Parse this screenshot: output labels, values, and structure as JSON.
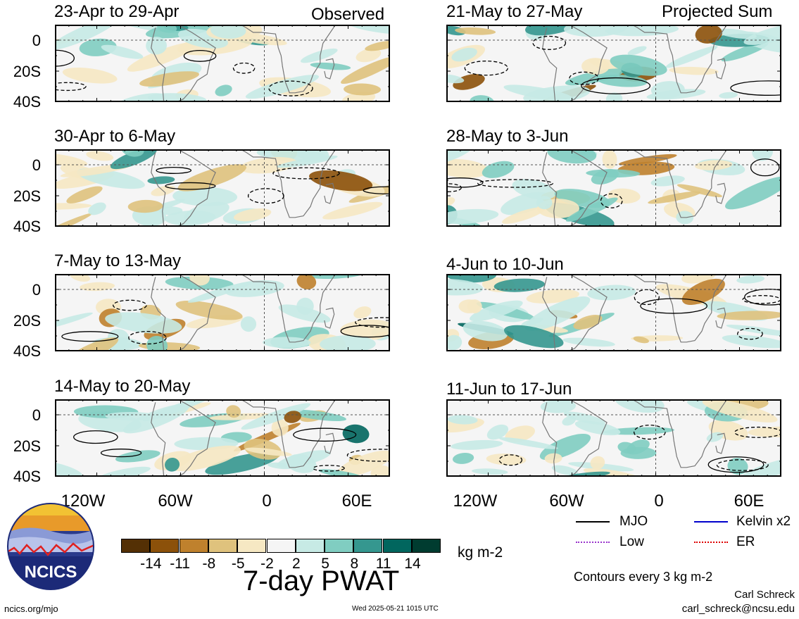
{
  "columns": [
    {
      "tag": "Observed",
      "panels": [
        {
          "title": "23-Apr to 29-Apr"
        },
        {
          "title": "30-Apr to 6-May"
        },
        {
          "title": "7-May to 13-May"
        },
        {
          "title": "14-May to 20-May"
        }
      ]
    },
    {
      "tag": "Projected Sum",
      "panels": [
        {
          "title": "21-May to 27-May"
        },
        {
          "title": "28-May to 3-Jun"
        },
        {
          "title": "4-Jun to 10-Jun"
        },
        {
          "title": "11-Jun to 17-Jun"
        }
      ]
    }
  ],
  "lat_labels": [
    "0",
    "20S",
    "40S"
  ],
  "lon_labels": [
    "120W",
    "60W",
    "0",
    "60E"
  ],
  "colorbar": {
    "colors": [
      "#543005",
      "#8c510a",
      "#bf812d",
      "#dfc27d",
      "#f6e8c3",
      "#f5f5f5",
      "#c7eae5",
      "#80cdc1",
      "#35978f",
      "#01665e",
      "#003c30"
    ],
    "labels": [
      "-14",
      "-11",
      "-8",
      "-5",
      "-2",
      "2",
      "5",
      "8",
      "11",
      "14"
    ],
    "unit": "kg m-2",
    "title": "7-day PWAT"
  },
  "legend": {
    "mjo": "MJO",
    "kelvin": "Kelvin x2",
    "low": "Low",
    "er": "ER",
    "mjo_color": "#000000",
    "kelvin_color": "#0000cc",
    "low_color": "#9933cc",
    "er_color": "#dd0000"
  },
  "contour_note": "Contours every 3 kg m-2",
  "logo_text": "NCICS",
  "site": "ncics.org/mjo",
  "timestamp": "Wed 2025-05-21 1015 UTC",
  "author": "Carl Schreck",
  "email": "carl_schreck@ncsu.edu"
}
